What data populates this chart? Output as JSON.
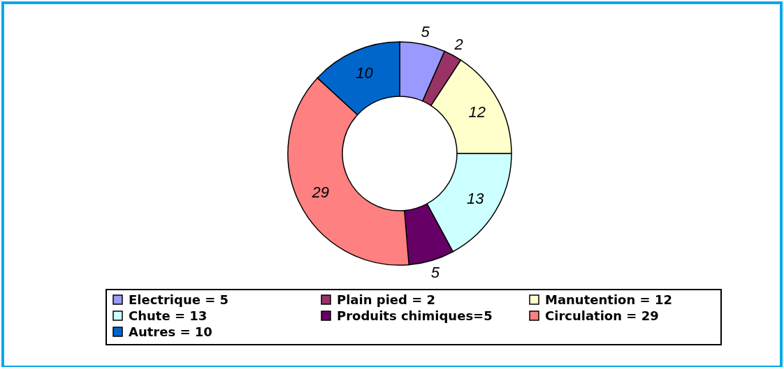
{
  "chart_data": {
    "type": "donut",
    "categories": [
      "Electrique = 5",
      "Plain pied = 2",
      "Manutention = 12",
      "Chute = 13",
      "Produits chimiques=5",
      "Circulation = 29",
      "Autres = 10"
    ],
    "values": [
      5,
      2,
      12,
      13,
      5,
      29,
      10
    ],
    "colors": [
      "#9999ff",
      "#993366",
      "#ffffcc",
      "#ccffff",
      "#660066",
      "#ff8080",
      "#0066cc"
    ],
    "data_labels": true,
    "legend": "bottom"
  }
}
